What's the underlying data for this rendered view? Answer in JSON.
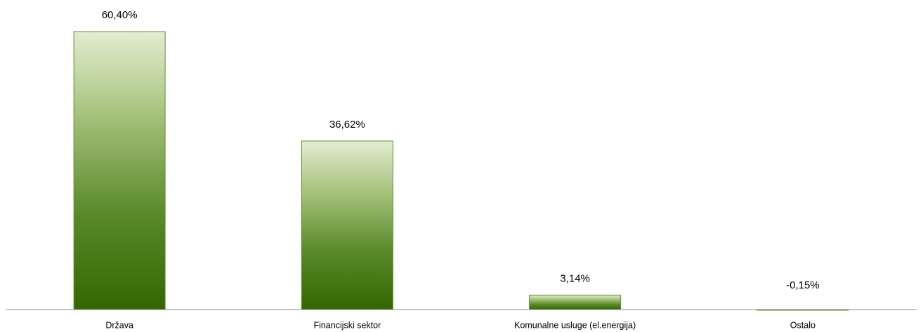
{
  "chart_data": {
    "type": "bar",
    "categories": [
      "Država",
      "Financijski sektor",
      "Komunalne usluge (el.energija)",
      "Ostalo"
    ],
    "values": [
      60.4,
      36.62,
      3.14,
      -0.15
    ],
    "value_labels": [
      "60,40%",
      "36,62%",
      "3,14%",
      "-0,15%"
    ],
    "color": "#336600"
  }
}
